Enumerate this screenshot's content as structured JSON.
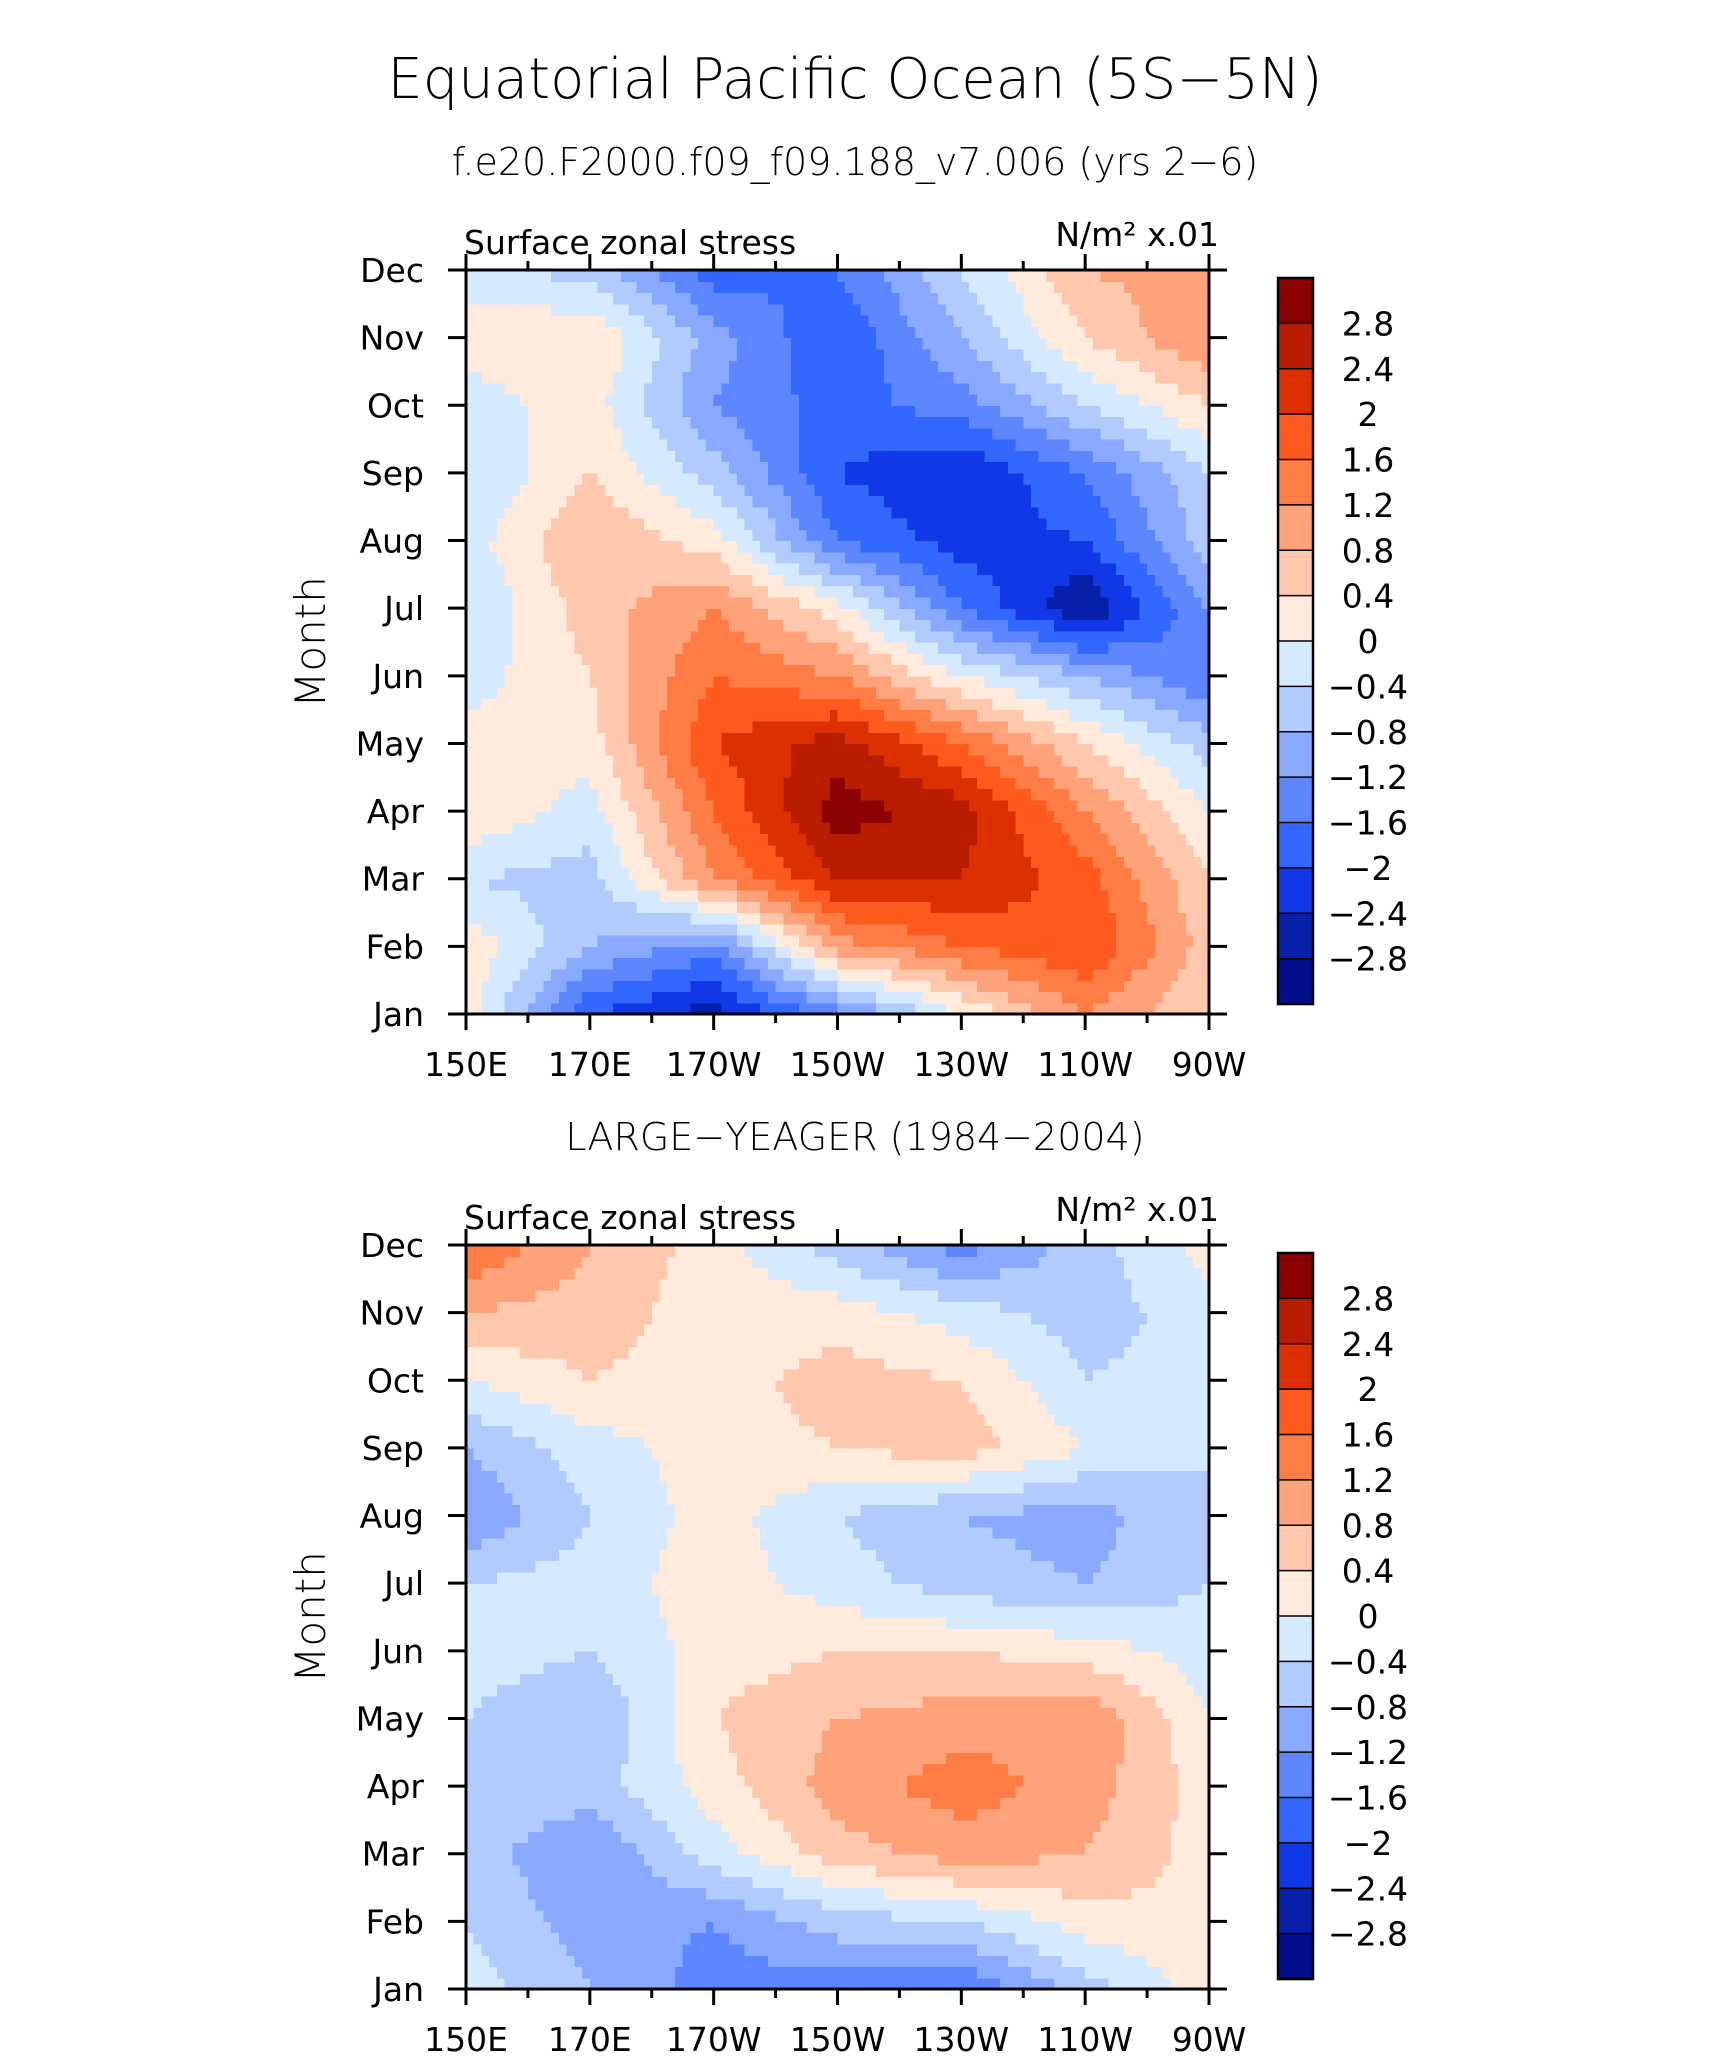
{
  "title": "Equatorial Pacific Ocean (5S−5N)",
  "colorbar": {
    "levels": [
      "2.8",
      "2.4",
      "2",
      "1.6",
      "1.2",
      "0.8",
      "0.4",
      "0",
      "−0.4",
      "−0.8",
      "−1.2",
      "−1.6",
      "−2",
      "−2.4",
      "−2.8"
    ],
    "colors": [
      "#8b0000",
      "#b81d00",
      "#dc3000",
      "#ff5a1e",
      "#ff7d44",
      "#ffa27a",
      "#ffc7ac",
      "#ffeadb",
      "#d6eaff",
      "#b1cbff",
      "#88a9ff",
      "#5e87ff",
      "#3368ff",
      "#1038e6",
      "#0620aa",
      "#000e8c"
    ]
  },
  "chart_data": [
    {
      "type": "heatmap",
      "subtitle": "f.e20.F2000.f09_f09.188_v7.006 (yrs 2−6)",
      "left_label": "Surface zonal stress",
      "right_label": "N/m² x.01",
      "ylabel": "Month",
      "x_ticks": [
        "150E",
        "170E",
        "170W",
        "150W",
        "130W",
        "110W",
        "90W"
      ],
      "y_ticks": [
        "Jan",
        "Feb",
        "Mar",
        "Apr",
        "May",
        "Jun",
        "Jul",
        "Aug",
        "Sep",
        "Oct",
        "Nov",
        "Dec"
      ],
      "xlim": [
        150,
        270
      ],
      "ylim": [
        1,
        12
      ],
      "x": [
        150,
        170,
        190,
        210,
        230,
        250,
        270
      ],
      "y": [
        1,
        2,
        3,
        4,
        5,
        6,
        7,
        8,
        9,
        10,
        11,
        12
      ],
      "z": [
        [
          0.2,
          -2.0,
          -2.6,
          -1.4,
          0.0,
          1.2,
          0.4
        ],
        [
          0.3,
          -0.8,
          -1.4,
          1.0,
          1.6,
          2.0,
          0.6
        ],
        [
          -0.4,
          -0.6,
          1.2,
          2.4,
          2.4,
          1.8,
          0.4
        ],
        [
          0.4,
          -0.2,
          1.6,
          3.0,
          2.6,
          1.2,
          0.0
        ],
        [
          0.2,
          0.2,
          2.0,
          2.6,
          1.6,
          0.4,
          -0.6
        ],
        [
          -0.2,
          0.4,
          1.6,
          1.2,
          0.0,
          -0.8,
          -1.6
        ],
        [
          -0.4,
          0.6,
          1.2,
          0.2,
          -1.6,
          -2.8,
          -1.2
        ],
        [
          -0.2,
          0.8,
          0.2,
          -1.6,
          -2.2,
          -2.0,
          -0.6
        ],
        [
          -0.4,
          0.4,
          -0.6,
          -2.0,
          -2.4,
          -1.6,
          -0.4
        ],
        [
          -0.2,
          0.2,
          -1.2,
          -1.8,
          -1.4,
          -0.4,
          0.4
        ],
        [
          0.2,
          0.4,
          -1.0,
          -2.0,
          -0.8,
          0.4,
          1.2
        ],
        [
          -0.2,
          -0.6,
          -1.8,
          -1.6,
          -0.4,
          0.8,
          1.0
        ]
      ]
    },
    {
      "type": "heatmap",
      "subtitle": "LARGE−YEAGER (1984−2004)",
      "left_label": "Surface zonal stress",
      "right_label": "N/m² x.01",
      "ylabel": "Month",
      "x_ticks": [
        "150E",
        "170E",
        "170W",
        "150W",
        "130W",
        "110W",
        "90W"
      ],
      "y_ticks": [
        "Jan",
        "Feb",
        "Mar",
        "Apr",
        "May",
        "Jun",
        "Jul",
        "Aug",
        "Sep",
        "Oct",
        "Nov",
        "Dec"
      ],
      "xlim": [
        150,
        270
      ],
      "ylim": [
        1,
        12
      ],
      "x": [
        150,
        170,
        190,
        210,
        230,
        250,
        270
      ],
      "y": [
        1,
        2,
        3,
        4,
        5,
        6,
        7,
        8,
        9,
        10,
        11,
        12
      ],
      "z": [
        [
          -0.2,
          -0.8,
          -1.4,
          -1.4,
          -1.6,
          -0.6,
          0.2
        ],
        [
          -0.4,
          -1.0,
          -1.2,
          -0.6,
          -0.4,
          0.2,
          0.4
        ],
        [
          -0.6,
          -1.2,
          -0.2,
          0.6,
          1.0,
          0.8,
          0.2
        ],
        [
          -0.4,
          -0.6,
          0.2,
          1.0,
          1.4,
          1.0,
          0.2
        ],
        [
          -0.4,
          -0.8,
          0.4,
          0.8,
          1.0,
          1.2,
          0.0
        ],
        [
          -0.2,
          -0.4,
          0.2,
          0.4,
          0.4,
          0.2,
          -0.2
        ],
        [
          -0.4,
          -0.2,
          0.2,
          -0.2,
          -0.6,
          -0.8,
          -0.4
        ],
        [
          -1.2,
          -0.4,
          0.2,
          -0.4,
          -0.8,
          -1.0,
          -0.4
        ],
        [
          -0.8,
          -0.2,
          0.2,
          0.4,
          0.6,
          0.0,
          -0.4
        ],
        [
          0.0,
          0.4,
          0.2,
          0.6,
          0.4,
          -0.4,
          -0.2
        ],
        [
          0.8,
          0.6,
          0.2,
          0.2,
          -0.2,
          -0.6,
          -0.2
        ],
        [
          1.6,
          0.8,
          0.2,
          -0.6,
          -1.4,
          -0.6,
          0.2
        ]
      ]
    }
  ]
}
